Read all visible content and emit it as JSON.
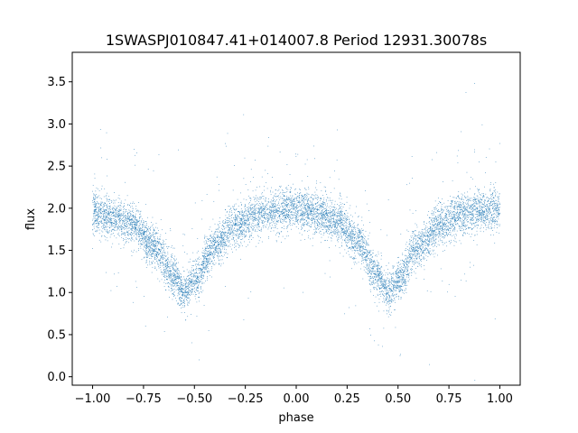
{
  "chart_data": {
    "type": "scatter",
    "title": "1SWASPJ010847.41+014007.8 Period 12931.30078s",
    "xlabel": "phase",
    "ylabel": "flux",
    "xlim": [
      -1.1,
      1.1
    ],
    "ylim": [
      -0.1,
      3.85
    ],
    "xticks": [
      -1.0,
      -0.75,
      -0.5,
      -0.25,
      0.0,
      0.25,
      0.5,
      0.75,
      1.0
    ],
    "xtick_labels": [
      "−1.00",
      "−0.75",
      "−0.50",
      "−0.25",
      "0.00",
      "0.25",
      "0.50",
      "0.75",
      "1.00"
    ],
    "yticks": [
      0.0,
      0.5,
      1.0,
      1.5,
      2.0,
      2.5,
      3.0,
      3.5
    ],
    "ytick_labels": [
      "0.0",
      "0.5",
      "1.0",
      "1.5",
      "2.0",
      "2.5",
      "3.0",
      "3.5"
    ],
    "grid": false,
    "marker_color": "#1f77b4",
    "series": [
      {
        "x_range": [
          -1.0,
          1.0
        ],
        "profile_phase": [
          -1.0,
          -0.9,
          -0.8,
          -0.7,
          -0.6,
          -0.55,
          -0.5,
          -0.4,
          -0.3,
          -0.2,
          -0.1,
          0.0,
          0.1,
          0.2,
          0.3,
          0.4,
          0.45,
          0.5,
          0.6,
          0.7,
          0.8,
          0.9,
          1.0
        ],
        "profile_flux": [
          1.95,
          1.9,
          1.8,
          1.55,
          1.2,
          1.0,
          1.15,
          1.55,
          1.8,
          1.92,
          1.98,
          2.0,
          1.95,
          1.85,
          1.6,
          1.2,
          1.0,
          1.15,
          1.55,
          1.8,
          1.92,
          1.97,
          2.0
        ],
        "scatter_sigma": 0.12,
        "point_count": 9000
      }
    ]
  }
}
